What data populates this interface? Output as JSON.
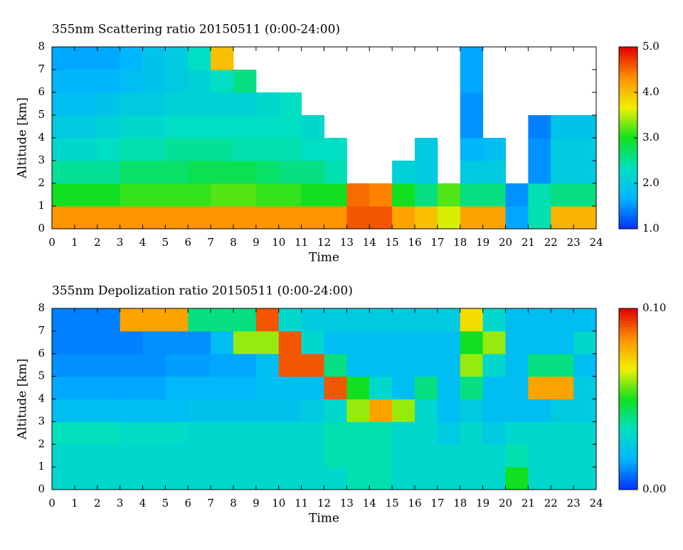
{
  "chart_data": [
    {
      "type": "heatmap",
      "title": "355nm Scattering ratio  20150511 (0:00-24:00)",
      "xlabel": "Time",
      "ylabel": "Altitude [km]",
      "xlim": [
        0,
        24
      ],
      "xticks": [
        0,
        1,
        2,
        3,
        4,
        5,
        6,
        7,
        8,
        9,
        10,
        11,
        12,
        13,
        14,
        15,
        16,
        17,
        18,
        19,
        20,
        21,
        22,
        23,
        24
      ],
      "ylim": [
        0,
        8
      ],
      "yticks": [
        0,
        1,
        2,
        3,
        4,
        5,
        6,
        7,
        8
      ],
      "clim": [
        1,
        5
      ],
      "cticks": [
        {
          "value": 1,
          "label": "1.0"
        },
        {
          "value": 2,
          "label": "2.0"
        },
        {
          "value": 3,
          "label": "3.0"
        },
        {
          "value": 4,
          "label": "4.0"
        },
        {
          "value": 5,
          "label": "5.0"
        }
      ],
      "colormap": [
        "#0030ff",
        "#00b4ff",
        "#00e0c0",
        "#10e020",
        "#f0f000",
        "#ff9000",
        "#e00000"
      ],
      "values": [
        [
          4.3,
          4.3,
          4.3,
          4.3,
          4.3,
          4.3,
          4.3,
          4.3,
          4.3,
          4.3,
          4.3,
          4.3,
          4.3,
          4.6,
          4.6,
          4.2,
          4.0,
          3.6,
          4.2,
          4.2,
          1.6,
          2.4,
          4.1,
          4.1
        ],
        [
          3.0,
          3.0,
          3.0,
          3.1,
          3.1,
          3.1,
          3.1,
          3.2,
          3.2,
          3.1,
          3.1,
          3.0,
          3.0,
          4.5,
          4.4,
          3.0,
          2.6,
          3.2,
          2.6,
          2.6,
          1.5,
          2.4,
          2.6,
          2.6
        ],
        [
          2.5,
          2.5,
          2.5,
          2.7,
          2.7,
          2.7,
          2.8,
          2.8,
          2.8,
          2.7,
          2.6,
          2.6,
          2.4,
          null,
          null,
          2.1,
          2.0,
          null,
          2.0,
          2.0,
          null,
          1.5,
          2.0,
          2.0
        ],
        [
          2.2,
          2.2,
          2.3,
          2.4,
          2.4,
          2.5,
          2.5,
          2.5,
          2.4,
          2.4,
          2.4,
          2.3,
          2.3,
          null,
          null,
          null,
          2.0,
          null,
          1.7,
          1.8,
          null,
          1.5,
          2.0,
          2.0
        ],
        [
          2.0,
          2.0,
          2.1,
          2.2,
          2.2,
          2.3,
          2.3,
          2.3,
          2.3,
          2.3,
          2.3,
          2.2,
          null,
          null,
          null,
          null,
          null,
          null,
          1.5,
          null,
          null,
          1.4,
          1.9,
          1.9
        ],
        [
          1.8,
          1.8,
          1.9,
          2.0,
          2.0,
          2.1,
          2.1,
          2.1,
          2.1,
          2.2,
          2.3,
          null,
          null,
          null,
          null,
          null,
          null,
          null,
          1.5,
          null,
          null,
          null,
          null,
          null
        ],
        [
          1.7,
          1.7,
          1.7,
          1.8,
          1.9,
          2.0,
          2.1,
          2.3,
          2.6,
          null,
          null,
          null,
          null,
          null,
          null,
          null,
          null,
          null,
          1.6,
          null,
          null,
          null,
          null,
          null
        ],
        [
          1.6,
          1.6,
          1.6,
          1.7,
          1.9,
          2.0,
          2.3,
          4.0,
          null,
          null,
          null,
          null,
          null,
          null,
          null,
          null,
          null,
          null,
          1.6,
          null,
          null,
          null,
          null,
          null
        ]
      ]
    },
    {
      "type": "heatmap",
      "title": "355nm Depolization ratio  20150511 (0:00-24:00)",
      "xlabel": "Time",
      "ylabel": "Altitude [km]",
      "xlim": [
        0,
        24
      ],
      "xticks": [
        0,
        1,
        2,
        3,
        4,
        5,
        6,
        7,
        8,
        9,
        10,
        11,
        12,
        13,
        14,
        15,
        16,
        17,
        18,
        19,
        20,
        21,
        22,
        23,
        24
      ],
      "ylim": [
        0,
        8
      ],
      "yticks": [
        0,
        1,
        2,
        3,
        4,
        5,
        6,
        7,
        8
      ],
      "clim": [
        0,
        0.1
      ],
      "cticks": [
        {
          "value": 0,
          "label": "0.00"
        },
        {
          "value": 0.1,
          "label": "0.10"
        }
      ],
      "colormap": [
        "#0030ff",
        "#00b4ff",
        "#00e0c0",
        "#10e020",
        "#f0f000",
        "#ff9000",
        "#e00000"
      ],
      "values": [
        [
          0.03,
          0.03,
          0.03,
          0.03,
          0.03,
          0.03,
          0.03,
          0.03,
          0.03,
          0.03,
          0.03,
          0.03,
          0.03,
          0.035,
          0.035,
          0.03,
          0.03,
          0.03,
          0.03,
          0.03,
          0.05,
          0.03,
          0.03,
          0.03
        ],
        [
          0.03,
          0.03,
          0.03,
          0.03,
          0.03,
          0.03,
          0.03,
          0.03,
          0.03,
          0.03,
          0.03,
          0.03,
          0.035,
          0.035,
          0.035,
          0.03,
          0.03,
          0.03,
          0.03,
          0.03,
          0.035,
          0.03,
          0.03,
          0.03
        ],
        [
          0.034,
          0.034,
          0.034,
          0.032,
          0.032,
          0.032,
          0.03,
          0.03,
          0.03,
          0.03,
          0.03,
          0.03,
          0.035,
          0.035,
          0.035,
          0.03,
          0.03,
          0.025,
          0.03,
          0.025,
          0.03,
          0.03,
          0.03,
          0.03
        ],
        [
          0.02,
          0.02,
          0.02,
          0.02,
          0.02,
          0.02,
          0.022,
          0.022,
          0.022,
          0.022,
          0.022,
          0.025,
          0.03,
          0.06,
          0.08,
          0.06,
          0.03,
          0.02,
          0.025,
          0.02,
          0.02,
          0.02,
          0.025,
          0.025
        ],
        [
          0.015,
          0.015,
          0.015,
          0.015,
          0.015,
          0.018,
          0.018,
          0.018,
          0.018,
          0.02,
          0.02,
          0.02,
          0.09,
          0.05,
          0.03,
          0.02,
          0.04,
          0.02,
          0.04,
          0.02,
          0.02,
          0.08,
          0.08,
          0.025
        ],
        [
          0.012,
          0.012,
          0.012,
          0.012,
          0.012,
          0.014,
          0.014,
          0.015,
          0.015,
          0.02,
          0.09,
          0.09,
          0.04,
          0.02,
          0.02,
          0.02,
          0.02,
          0.02,
          0.06,
          0.03,
          0.02,
          0.04,
          0.04,
          0.02
        ],
        [
          0.01,
          0.01,
          0.01,
          0.01,
          0.012,
          0.012,
          0.012,
          0.02,
          0.06,
          0.06,
          0.09,
          0.03,
          0.02,
          0.02,
          0.02,
          0.02,
          0.02,
          0.02,
          0.05,
          0.06,
          0.02,
          0.02,
          0.02,
          0.03
        ],
        [
          0.01,
          0.01,
          0.01,
          0.08,
          0.08,
          0.08,
          0.04,
          0.04,
          0.04,
          0.09,
          0.03,
          0.025,
          0.025,
          0.025,
          0.025,
          0.025,
          0.025,
          0.025,
          0.07,
          0.03,
          0.02,
          0.02,
          0.02,
          0.02
        ]
      ]
    }
  ]
}
